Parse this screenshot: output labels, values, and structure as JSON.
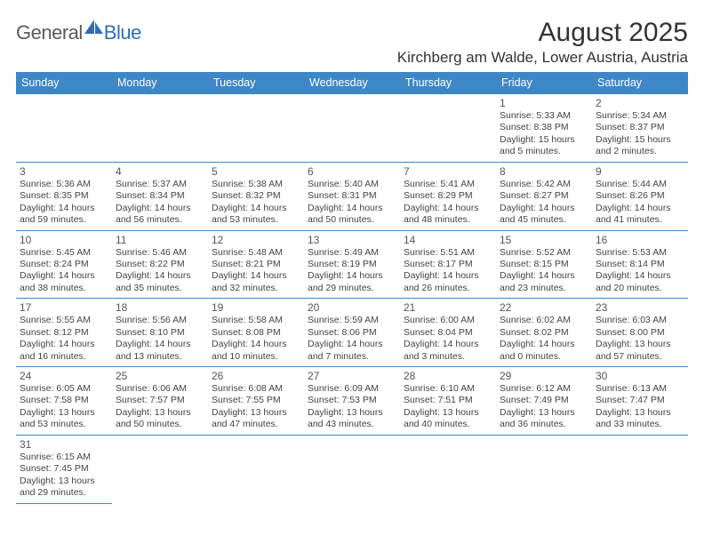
{
  "logo": {
    "part1": "General",
    "part2": "Blue"
  },
  "title": "August 2025",
  "location": "Kirchberg am Walde, Lower Austria, Austria",
  "header_bg": "#3d87c7",
  "weekdays": [
    "Sunday",
    "Monday",
    "Tuesday",
    "Wednesday",
    "Thursday",
    "Friday",
    "Saturday"
  ],
  "weeks": [
    [
      null,
      null,
      null,
      null,
      null,
      {
        "n": "1",
        "sr": "5:33 AM",
        "ss": "8:38 PM",
        "dl": "15 hours and 5 minutes."
      },
      {
        "n": "2",
        "sr": "5:34 AM",
        "ss": "8:37 PM",
        "dl": "15 hours and 2 minutes."
      }
    ],
    [
      {
        "n": "3",
        "sr": "5:36 AM",
        "ss": "8:35 PM",
        "dl": "14 hours and 59 minutes."
      },
      {
        "n": "4",
        "sr": "5:37 AM",
        "ss": "8:34 PM",
        "dl": "14 hours and 56 minutes."
      },
      {
        "n": "5",
        "sr": "5:38 AM",
        "ss": "8:32 PM",
        "dl": "14 hours and 53 minutes."
      },
      {
        "n": "6",
        "sr": "5:40 AM",
        "ss": "8:31 PM",
        "dl": "14 hours and 50 minutes."
      },
      {
        "n": "7",
        "sr": "5:41 AM",
        "ss": "8:29 PM",
        "dl": "14 hours and 48 minutes."
      },
      {
        "n": "8",
        "sr": "5:42 AM",
        "ss": "8:27 PM",
        "dl": "14 hours and 45 minutes."
      },
      {
        "n": "9",
        "sr": "5:44 AM",
        "ss": "8:26 PM",
        "dl": "14 hours and 41 minutes."
      }
    ],
    [
      {
        "n": "10",
        "sr": "5:45 AM",
        "ss": "8:24 PM",
        "dl": "14 hours and 38 minutes."
      },
      {
        "n": "11",
        "sr": "5:46 AM",
        "ss": "8:22 PM",
        "dl": "14 hours and 35 minutes."
      },
      {
        "n": "12",
        "sr": "5:48 AM",
        "ss": "8:21 PM",
        "dl": "14 hours and 32 minutes."
      },
      {
        "n": "13",
        "sr": "5:49 AM",
        "ss": "8:19 PM",
        "dl": "14 hours and 29 minutes."
      },
      {
        "n": "14",
        "sr": "5:51 AM",
        "ss": "8:17 PM",
        "dl": "14 hours and 26 minutes."
      },
      {
        "n": "15",
        "sr": "5:52 AM",
        "ss": "8:15 PM",
        "dl": "14 hours and 23 minutes."
      },
      {
        "n": "16",
        "sr": "5:53 AM",
        "ss": "8:14 PM",
        "dl": "14 hours and 20 minutes."
      }
    ],
    [
      {
        "n": "17",
        "sr": "5:55 AM",
        "ss": "8:12 PM",
        "dl": "14 hours and 16 minutes."
      },
      {
        "n": "18",
        "sr": "5:56 AM",
        "ss": "8:10 PM",
        "dl": "14 hours and 13 minutes."
      },
      {
        "n": "19",
        "sr": "5:58 AM",
        "ss": "8:08 PM",
        "dl": "14 hours and 10 minutes."
      },
      {
        "n": "20",
        "sr": "5:59 AM",
        "ss": "8:06 PM",
        "dl": "14 hours and 7 minutes."
      },
      {
        "n": "21",
        "sr": "6:00 AM",
        "ss": "8:04 PM",
        "dl": "14 hours and 3 minutes."
      },
      {
        "n": "22",
        "sr": "6:02 AM",
        "ss": "8:02 PM",
        "dl": "14 hours and 0 minutes."
      },
      {
        "n": "23",
        "sr": "6:03 AM",
        "ss": "8:00 PM",
        "dl": "13 hours and 57 minutes."
      }
    ],
    [
      {
        "n": "24",
        "sr": "6:05 AM",
        "ss": "7:58 PM",
        "dl": "13 hours and 53 minutes."
      },
      {
        "n": "25",
        "sr": "6:06 AM",
        "ss": "7:57 PM",
        "dl": "13 hours and 50 minutes."
      },
      {
        "n": "26",
        "sr": "6:08 AM",
        "ss": "7:55 PM",
        "dl": "13 hours and 47 minutes."
      },
      {
        "n": "27",
        "sr": "6:09 AM",
        "ss": "7:53 PM",
        "dl": "13 hours and 43 minutes."
      },
      {
        "n": "28",
        "sr": "6:10 AM",
        "ss": "7:51 PM",
        "dl": "13 hours and 40 minutes."
      },
      {
        "n": "29",
        "sr": "6:12 AM",
        "ss": "7:49 PM",
        "dl": "13 hours and 36 minutes."
      },
      {
        "n": "30",
        "sr": "6:13 AM",
        "ss": "7:47 PM",
        "dl": "13 hours and 33 minutes."
      }
    ],
    [
      {
        "n": "31",
        "sr": "6:15 AM",
        "ss": "7:45 PM",
        "dl": "13 hours and 29 minutes."
      },
      null,
      null,
      null,
      null,
      null,
      null
    ]
  ],
  "labels": {
    "sunrise": "Sunrise: ",
    "sunset": "Sunset: ",
    "daylight": "Daylight: "
  }
}
